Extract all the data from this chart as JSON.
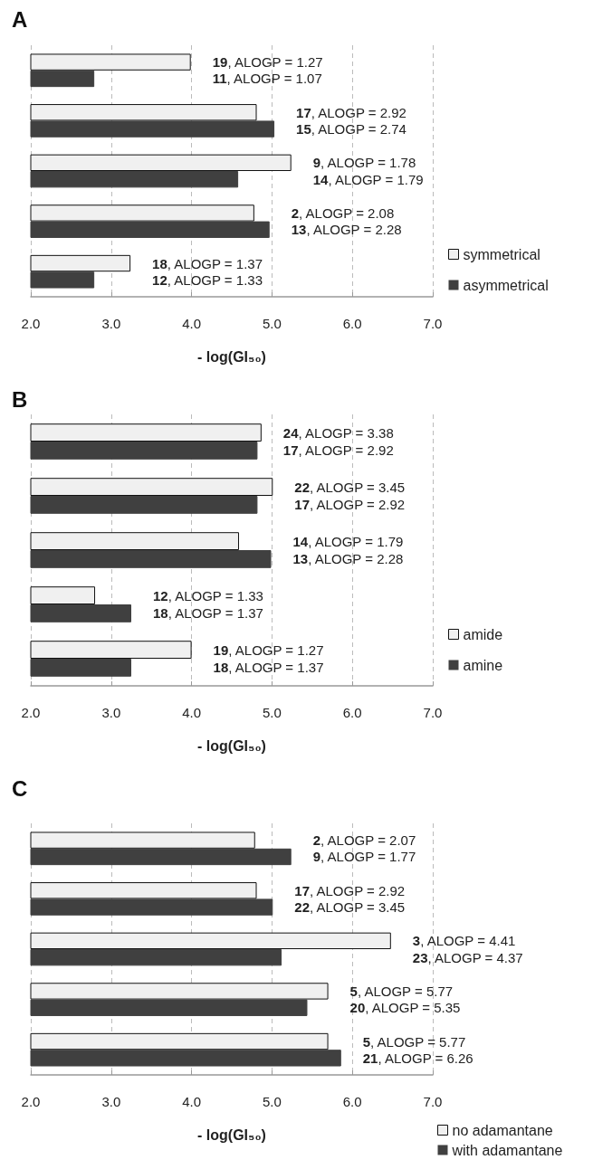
{
  "chart_data": [
    {
      "type": "bar",
      "orientation": "horizontal",
      "title": "A",
      "xlabel": "- log(GI₅₀)",
      "categories": [
        null,
        null,
        null,
        null,
        null
      ],
      "xlim": [
        2,
        7
      ],
      "xticks": [
        {
          "value": 2,
          "label": "2.0"
        },
        {
          "value": 3,
          "label": "3.0"
        },
        {
          "value": 4,
          "label": "4.0"
        },
        {
          "value": 5,
          "label": "5.0"
        },
        {
          "value": 6,
          "label": "6.0"
        },
        {
          "value": 7,
          "label": "7.0"
        }
      ],
      "grid": "x",
      "legend": "right",
      "series": [
        {
          "name": "symmetrical",
          "color": "#f0f0f0",
          "values": [
            3.99,
            4.81,
            5.24,
            4.78,
            3.24
          ]
        },
        {
          "name": "asymmetrical",
          "color": "#404040",
          "values": [
            2.79,
            5.03,
            4.58,
            4.97,
            2.79
          ]
        }
      ],
      "annotations": [
        "19, ALOGP = 1.27",
        "11, ALOGP = 1.07",
        "17, ALOGP = 2.92",
        "15, ALOGP = 2.74",
        "9, ALOGP = 1.78",
        "14, ALOGP = 1.79",
        "2, ALOGP = 2.08",
        "13, ALOGP = 2.28",
        "18, ALOGP = 1.37",
        "12, ALOGP = 1.33"
      ]
    },
    {
      "type": "bar",
      "orientation": "horizontal",
      "title": "B",
      "xlabel": "- log(GI₅₀)",
      "categories": [
        null,
        null,
        null,
        null,
        null
      ],
      "xlim": [
        2,
        7
      ],
      "xticks": [
        {
          "value": 2,
          "label": "2.0"
        },
        {
          "value": 3,
          "label": "3.0"
        },
        {
          "value": 4,
          "label": "4.0"
        },
        {
          "value": 5,
          "label": "5.0"
        },
        {
          "value": 6,
          "label": "6.0"
        },
        {
          "value": 7,
          "label": "7.0"
        }
      ],
      "grid": "x",
      "legend": "right",
      "series": [
        {
          "name": "amide",
          "color": "#f0f0f0",
          "values": [
            4.87,
            5.01,
            4.59,
            2.8,
            4.0
          ]
        },
        {
          "name": "amine",
          "color": "#404040",
          "values": [
            4.82,
            4.82,
            4.99,
            3.25,
            3.25
          ]
        }
      ],
      "annotations": [
        "24, ALOGP = 3.38",
        "17, ALOGP = 2.92",
        "22, ALOGP = 3.45",
        "17, ALOGP = 2.92",
        "14, ALOGP = 1.79",
        "13, ALOGP = 2.28",
        "12, ALOGP = 1.33",
        "18, ALOGP = 1.37",
        "19, ALOGP = 1.27",
        "18, ALOGP = 1.37"
      ]
    },
    {
      "type": "bar",
      "orientation": "horizontal",
      "title": "C",
      "xlabel": "- log(GI₅₀)",
      "categories": [
        null,
        null,
        null,
        null,
        null
      ],
      "xlim": [
        2,
        7
      ],
      "xticks": [
        {
          "value": 2,
          "label": "2.0"
        },
        {
          "value": 3,
          "label": "3.0"
        },
        {
          "value": 4,
          "label": "4.0"
        },
        {
          "value": 5,
          "label": "5.0"
        },
        {
          "value": 6,
          "label": "6.0"
        },
        {
          "value": 7,
          "label": "7.0"
        }
      ],
      "grid": "x",
      "legend": "bottom right",
      "series": [
        {
          "name": "no adamantane",
          "color": "#f0f0f0",
          "values": [
            4.79,
            4.81,
            6.48,
            5.7,
            5.7
          ]
        },
        {
          "name": "with adamantane",
          "color": "#404040",
          "values": [
            5.24,
            5.01,
            5.12,
            5.44,
            5.86
          ]
        }
      ],
      "annotations": [
        "2, ALOGP = 2.07",
        "9, ALOGP = 1.77",
        "17, ALOGP = 2.92",
        "22, ALOGP = 3.45",
        "3, ALOGP = 4.41",
        "23, ALOGP = 4.37",
        "5, ALOGP = 5.77",
        "20, ALOGP = 5.35",
        "5, ALOGP = 5.77",
        "21, ALOGP = 6.26"
      ]
    }
  ]
}
